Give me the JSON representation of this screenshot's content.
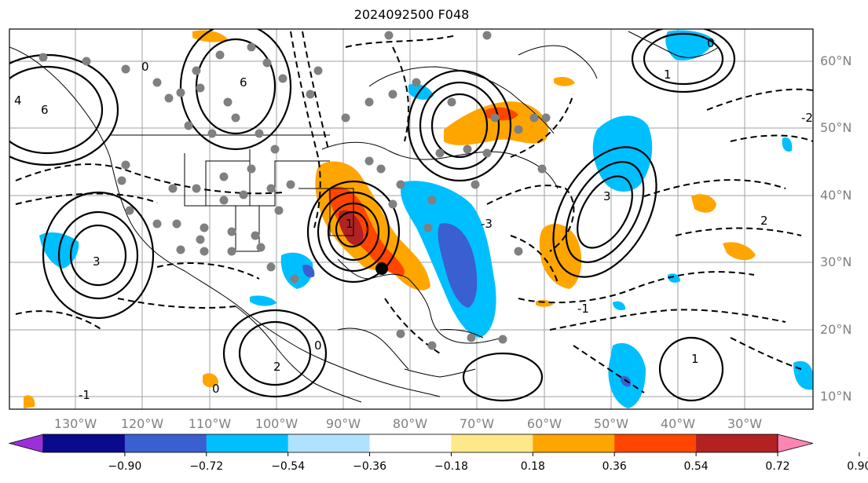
{
  "title": "2024092500 F048",
  "lat_labels": [
    "60°N",
    "50°N",
    "40°N",
    "30°N",
    "20°N",
    "10°N"
  ],
  "lon_labels": [
    "130°W",
    "120°W",
    "110°W",
    "100°W",
    "90°W",
    "80°W",
    "70°W",
    "60°W",
    "50°W",
    "40°W",
    "30°W"
  ],
  "colorbar": {
    "ticks": [
      "−0.90",
      "−0.72",
      "−0.54",
      "−0.36",
      "−0.18",
      "0.18",
      "0.36",
      "0.54",
      "0.72",
      "0.90"
    ],
    "colors": [
      "#9b30d9",
      "#0a0a8c",
      "#3a5fd0",
      "#00bfff",
      "#b0e2ff",
      "#ffffff",
      "#ffe88a",
      "#ffa500",
      "#ff4500",
      "#b22222",
      "#ff85b3"
    ]
  },
  "contour_labels": [
    "0",
    "1",
    "2",
    "3",
    "4",
    "6",
    "-1",
    "-2",
    "-3"
  ],
  "colors": {
    "grid": "#a0a0a0",
    "coast": "#000000",
    "label": "#808080"
  }
}
